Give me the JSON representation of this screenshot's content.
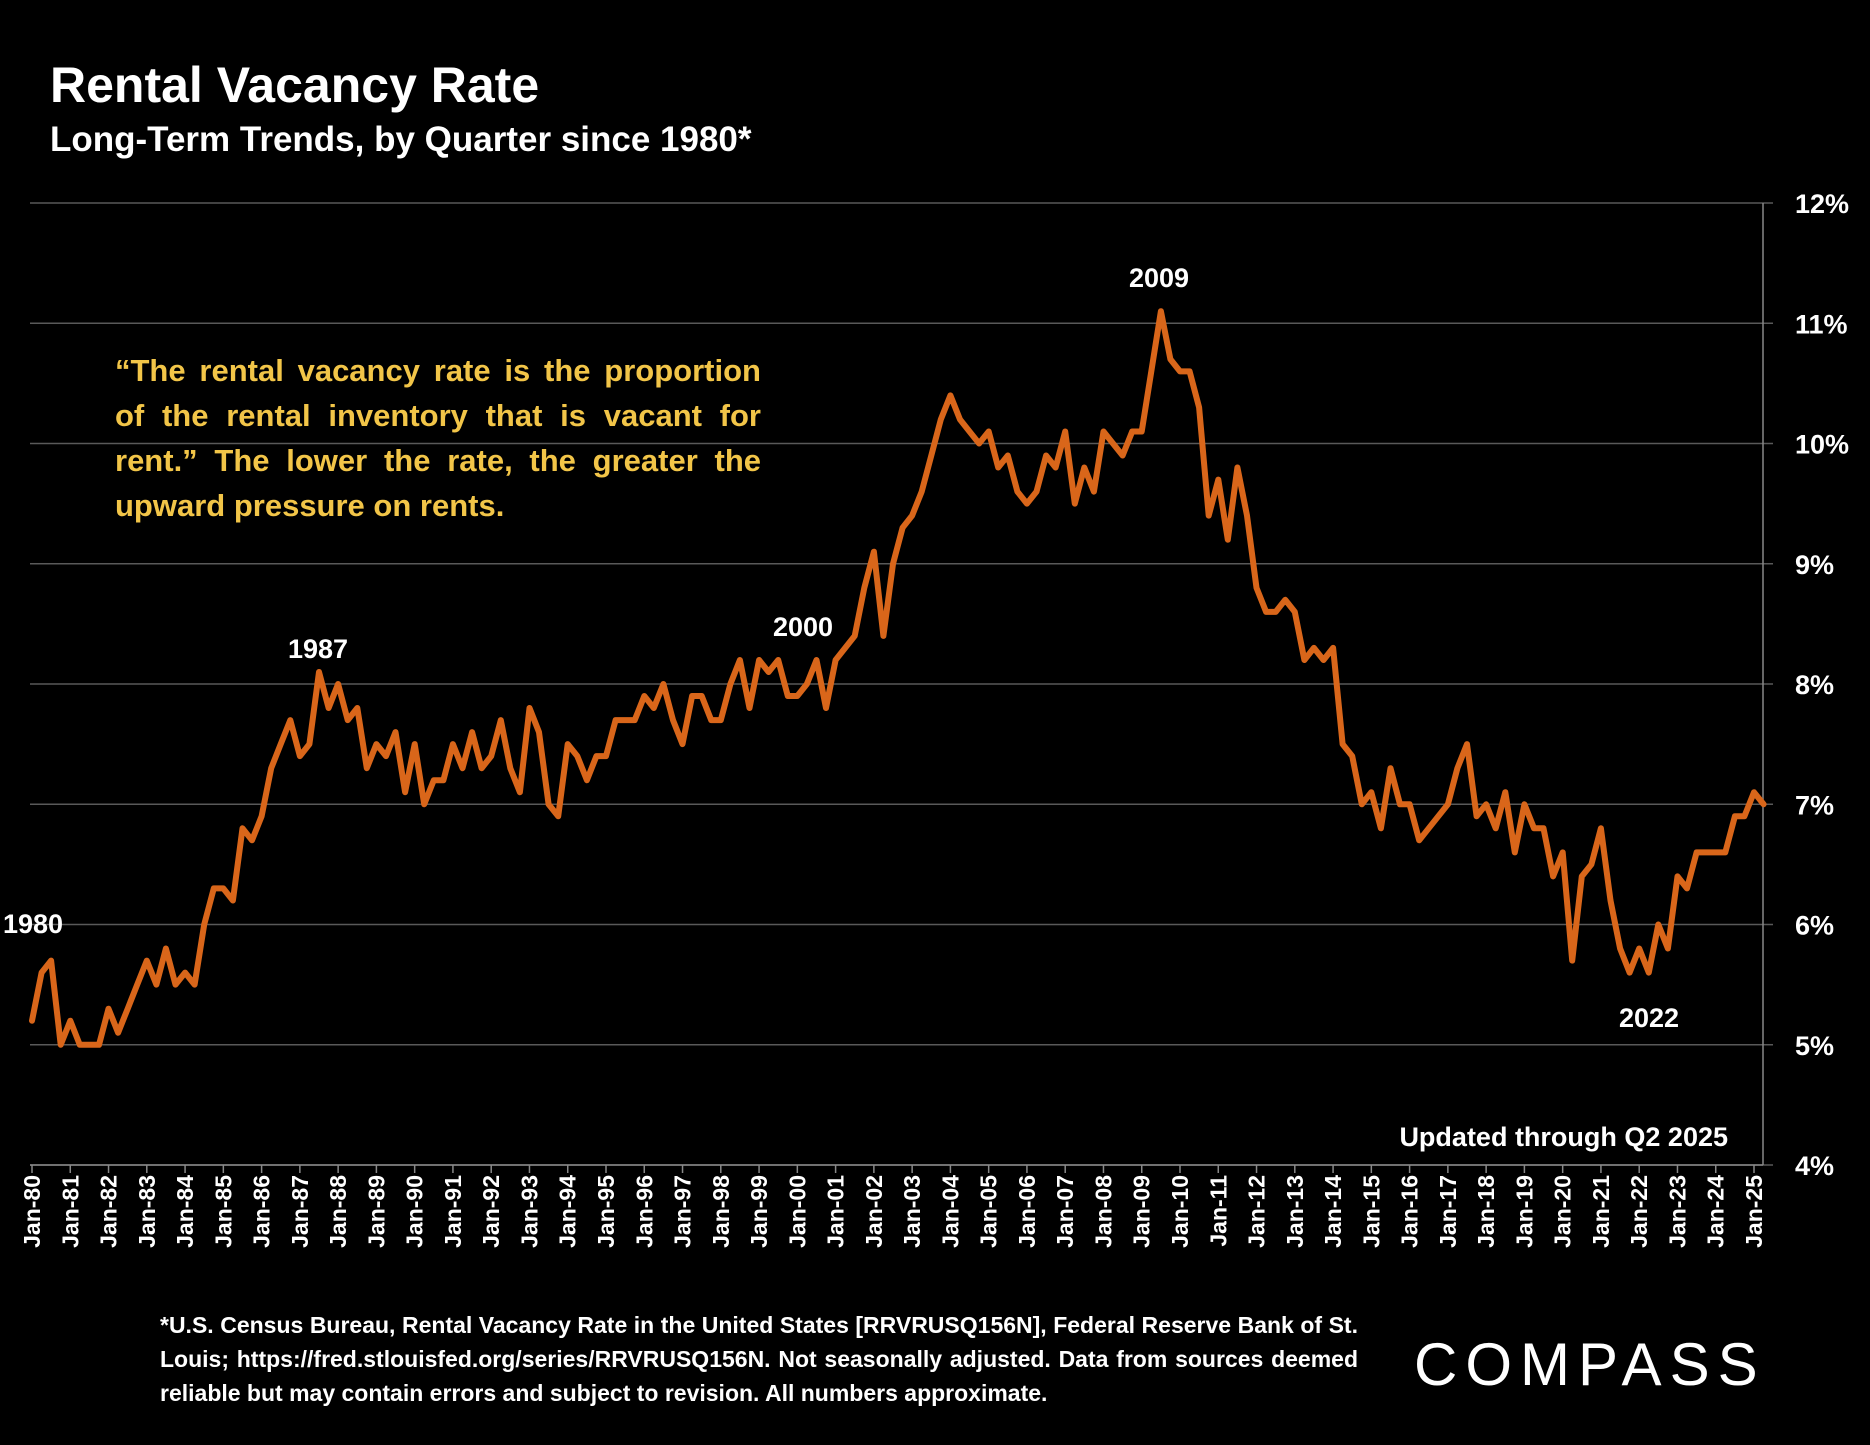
{
  "title": "Rental Vacancy Rate",
  "subtitle": "Long-Term Trends, by Quarter since 1980*",
  "quote": "“The rental vacancy rate is the proportion of the rental inventory that is vacant for rent.” The lower the rate, the greater the upward pressure on rents.",
  "footnote": "*U.S. Census Bureau, Rental Vacancy Rate in the United States [RRVRUSQ156N], Federal Reserve Bank of St. Louis; https://fred.stlouisfed.org/series/RRVRUSQ156N. Not seasonally adjusted. Data from sources deemed reliable but may contain errors and subject to revision. All numbers approximate.",
  "logo": "COMPASS",
  "colors": {
    "line": "#d9661a",
    "grid": "#595959",
    "quote": "#f2c548"
  },
  "chart_data": {
    "type": "line",
    "title": "Rental Vacancy Rate",
    "xlabel": "",
    "ylabel": "",
    "ylim": [
      4,
      12
    ],
    "y_ticks": [
      "4%",
      "5%",
      "6%",
      "7%",
      "8%",
      "9%",
      "10%",
      "11%",
      "12%"
    ],
    "x_ticks": [
      "Jan-80",
      "Jan-81",
      "Jan-82",
      "Jan-83",
      "Jan-84",
      "Jan-85",
      "Jan-86",
      "Jan-87",
      "Jan-88",
      "Jan-89",
      "Jan-90",
      "Jan-91",
      "Jan-92",
      "Jan-93",
      "Jan-94",
      "Jan-95",
      "Jan-96",
      "Jan-97",
      "Jan-98",
      "Jan-99",
      "Jan-00",
      "Jan-01",
      "Jan-02",
      "Jan-03",
      "Jan-04",
      "Jan-05",
      "Jan-06",
      "Jan-07",
      "Jan-08",
      "Jan-09",
      "Jan-10",
      "Jan-11",
      "Jan-12",
      "Jan-13",
      "Jan-14",
      "Jan-15",
      "Jan-16",
      "Jan-17",
      "Jan-18",
      "Jan-19",
      "Jan-20",
      "Jan-21",
      "Jan-22",
      "Jan-23",
      "Jan-24",
      "Jan-25"
    ],
    "grid": true,
    "y_axis_side": "right",
    "x_start": "1980-Q1",
    "frequency": "quarterly",
    "series": [
      {
        "name": "Rental Vacancy Rate (%)",
        "values": [
          5.2,
          5.6,
          5.7,
          5.0,
          5.2,
          5.0,
          5.0,
          5.0,
          5.3,
          5.1,
          5.3,
          5.5,
          5.7,
          5.5,
          5.8,
          5.5,
          5.6,
          5.5,
          6.0,
          6.3,
          6.3,
          6.2,
          6.8,
          6.7,
          6.9,
          7.3,
          7.5,
          7.7,
          7.4,
          7.5,
          8.1,
          7.8,
          8.0,
          7.7,
          7.8,
          7.3,
          7.5,
          7.4,
          7.6,
          7.1,
          7.5,
          7.0,
          7.2,
          7.2,
          7.5,
          7.3,
          7.6,
          7.3,
          7.4,
          7.7,
          7.3,
          7.1,
          7.8,
          7.6,
          7.0,
          6.9,
          7.5,
          7.4,
          7.2,
          7.4,
          7.4,
          7.7,
          7.7,
          7.7,
          7.9,
          7.8,
          8.0,
          7.7,
          7.5,
          7.9,
          7.9,
          7.7,
          7.7,
          8.0,
          8.2,
          7.8,
          8.2,
          8.1,
          8.2,
          7.9,
          7.9,
          8.0,
          8.2,
          7.8,
          8.2,
          8.3,
          8.4,
          8.8,
          9.1,
          8.4,
          9.0,
          9.3,
          9.4,
          9.6,
          9.9,
          10.2,
          10.4,
          10.2,
          10.1,
          10.0,
          10.1,
          9.8,
          9.9,
          9.6,
          9.5,
          9.6,
          9.9,
          9.8,
          10.1,
          9.5,
          9.8,
          9.6,
          10.1,
          10.0,
          9.9,
          10.1,
          10.1,
          10.6,
          11.1,
          10.7,
          10.6,
          10.6,
          10.3,
          9.4,
          9.7,
          9.2,
          9.8,
          9.4,
          8.8,
          8.6,
          8.6,
          8.7,
          8.6,
          8.2,
          8.3,
          8.2,
          8.3,
          7.5,
          7.4,
          7.0,
          7.1,
          6.8,
          7.3,
          7.0,
          7.0,
          6.7,
          6.8,
          6.9,
          7.0,
          7.3,
          7.5,
          6.9,
          7.0,
          6.8,
          7.1,
          6.6,
          7.0,
          6.8,
          6.8,
          6.4,
          6.6,
          5.7,
          6.4,
          6.5,
          6.8,
          6.2,
          5.8,
          5.6,
          5.8,
          5.6,
          6.0,
          5.8,
          6.4,
          6.3,
          6.6,
          6.6,
          6.6,
          6.6,
          6.9,
          6.9,
          7.1,
          7.0
        ]
      }
    ],
    "annotations": [
      {
        "text": "1980",
        "quarter_index": 0
      },
      {
        "text": "1987",
        "quarter_index": 30
      },
      {
        "text": "2000",
        "quarter_index": 82
      },
      {
        "text": "2009",
        "quarter_index": 118
      },
      {
        "text": "2022",
        "quarter_index": 169
      }
    ],
    "note": "Updated through Q2 2025"
  }
}
